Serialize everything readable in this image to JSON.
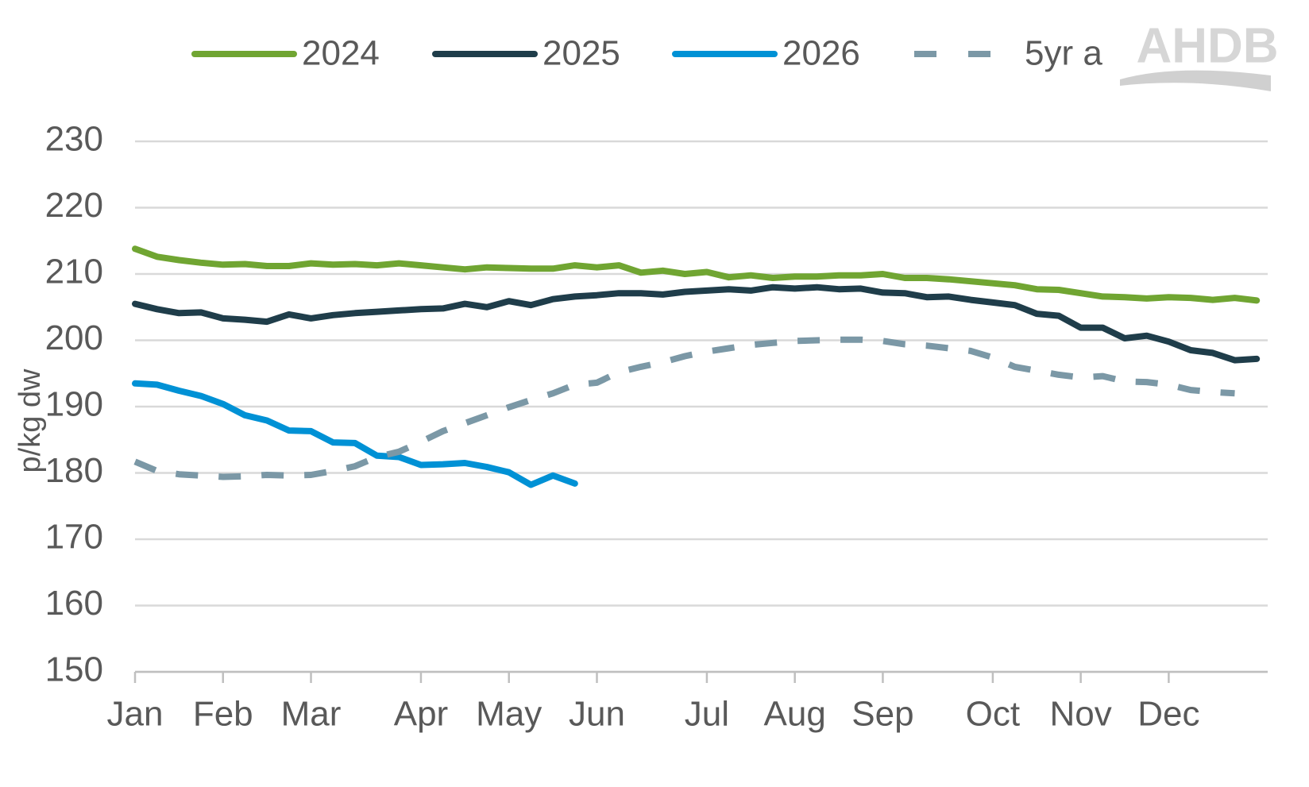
{
  "chart_data": {
    "type": "line",
    "y_label": "p/kg dw",
    "logo": "AHDB",
    "categories": [
      "Jan",
      null,
      null,
      null,
      "Feb",
      null,
      null,
      null,
      "Mar",
      null,
      null,
      null,
      null,
      "Apr",
      null,
      null,
      null,
      "May",
      null,
      null,
      null,
      "Jun",
      null,
      null,
      null,
      null,
      "Jul",
      null,
      null,
      null,
      "Aug",
      null,
      null,
      null,
      "Sep",
      null,
      null,
      null,
      null,
      "Oct",
      null,
      null,
      null,
      "Nov",
      null,
      null,
      null,
      "Dec",
      null,
      null,
      null,
      null
    ],
    "series": [
      {
        "name": "2024",
        "color": "#70a532",
        "dash": false,
        "values": [
          213.8,
          212.6,
          212.1,
          211.7,
          211.4,
          211.5,
          211.2,
          211.2,
          211.6,
          211.4,
          211.5,
          211.3,
          211.6,
          211.3,
          211.0,
          210.7,
          211.0,
          210.9,
          210.8,
          210.8,
          211.3,
          211.0,
          211.3,
          210.2,
          210.5,
          210.0,
          210.3,
          209.5,
          209.8,
          209.4,
          209.6,
          209.6,
          209.8,
          209.8,
          210.0,
          209.4,
          209.4,
          209.2,
          208.9,
          208.6,
          208.3,
          207.7,
          207.6,
          207.1,
          206.6,
          206.5,
          206.3,
          206.5,
          206.4,
          206.1,
          206.4,
          206.0
        ]
      },
      {
        "name": "2025",
        "color": "#1f3d4a",
        "dash": false,
        "values": [
          205.5,
          204.7,
          204.1,
          204.2,
          203.3,
          203.1,
          202.8,
          203.9,
          203.3,
          203.8,
          204.1,
          204.3,
          204.5,
          204.7,
          204.8,
          205.5,
          205.0,
          205.9,
          205.3,
          206.2,
          206.6,
          206.8,
          207.1,
          207.1,
          206.9,
          207.3,
          207.5,
          207.7,
          207.5,
          208.0,
          207.8,
          208.0,
          207.7,
          207.8,
          207.2,
          207.1,
          206.5,
          206.6,
          206.1,
          205.7,
          205.3,
          204.0,
          203.7,
          201.9,
          201.9,
          200.3,
          200.7,
          199.8,
          198.5,
          198.1,
          197.0,
          197.2
        ]
      },
      {
        "name": "2026",
        "color": "#0091d5",
        "dash": false,
        "values": [
          193.5,
          193.3,
          192.4,
          191.6,
          190.4,
          188.7,
          187.9,
          186.4,
          186.3,
          184.6,
          184.5,
          182.6,
          182.4,
          181.2,
          181.3,
          181.5,
          180.9,
          180.1,
          178.2,
          179.6,
          178.4,
          null,
          null,
          null,
          null,
          null,
          null,
          null,
          null,
          null,
          null,
          null,
          null,
          null,
          null,
          null,
          null,
          null,
          null,
          null,
          null,
          null,
          null,
          null,
          null,
          null,
          null,
          null,
          null,
          null,
          null,
          null
        ]
      },
      {
        "name": "5yr a",
        "color": "#7b98a6",
        "dash": true,
        "values": [
          181.7,
          180.3,
          179.8,
          179.6,
          179.4,
          179.5,
          179.7,
          179.6,
          179.7,
          180.3,
          181.0,
          182.4,
          183.2,
          184.7,
          186.3,
          187.5,
          188.7,
          189.9,
          191.0,
          192.0,
          193.3,
          193.6,
          195.2,
          196.0,
          196.7,
          197.6,
          198.3,
          198.8,
          199.3,
          199.6,
          199.9,
          200.0,
          200.1,
          200.1,
          199.9,
          199.4,
          199.2,
          198.8,
          198.4,
          197.4,
          196.0,
          195.4,
          194.8,
          194.4,
          194.6,
          193.8,
          193.7,
          193.3,
          192.5,
          192.2,
          192.0,
          null
        ]
      }
    ],
    "ylim": [
      150,
      230
    ],
    "yticks": [
      150,
      160,
      170,
      180,
      190,
      200,
      210,
      220,
      230
    ],
    "grid": true,
    "legend": "top"
  }
}
